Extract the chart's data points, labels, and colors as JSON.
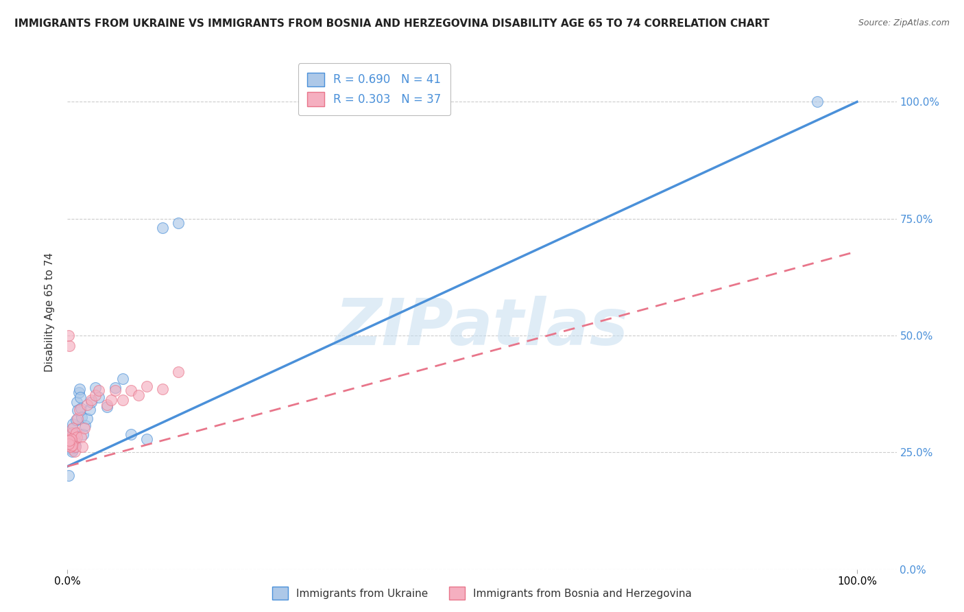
{
  "title": "IMMIGRANTS FROM UKRAINE VS IMMIGRANTS FROM BOSNIA AND HERZEGOVINA DISABILITY AGE 65 TO 74 CORRELATION CHART",
  "source": "Source: ZipAtlas.com",
  "ylabel": "Disability Age 65 to 74",
  "watermark": "ZIPatlas",
  "ukraine_R": 0.69,
  "ukraine_N": 41,
  "bosnia_R": 0.303,
  "bosnia_N": 37,
  "ukraine_color": "#adc8e8",
  "bosnia_color": "#f5afc0",
  "ukraine_line_color": "#4a90d9",
  "bosnia_line_color": "#e8758a",
  "background_color": "#ffffff",
  "grid_color": "#cccccc",
  "ukraine_scatter_x": [
    0.002,
    0.003,
    0.004,
    0.005,
    0.006,
    0.007,
    0.008,
    0.009,
    0.01,
    0.011,
    0.012,
    0.013,
    0.014,
    0.015,
    0.016,
    0.017,
    0.018,
    0.02,
    0.022,
    0.025,
    0.028,
    0.03,
    0.035,
    0.04,
    0.05,
    0.06,
    0.07,
    0.08,
    0.1,
    0.003,
    0.005,
    0.007,
    0.002,
    0.004,
    0.006,
    0.008,
    0.01,
    0.12,
    0.14,
    0.95,
    0.001
  ],
  "ukraine_scatter_y": [
    0.28,
    0.29,
    0.265,
    0.258,
    0.3,
    0.31,
    0.288,
    0.268,
    0.275,
    0.32,
    0.358,
    0.34,
    0.378,
    0.385,
    0.368,
    0.345,
    0.325,
    0.288,
    0.308,
    0.322,
    0.342,
    0.358,
    0.388,
    0.368,
    0.348,
    0.388,
    0.408,
    0.288,
    0.278,
    0.275,
    0.265,
    0.255,
    0.27,
    0.27,
    0.252,
    0.26,
    0.264,
    0.73,
    0.74,
    1.0,
    0.2
  ],
  "bosnia_scatter_x": [
    0.002,
    0.003,
    0.004,
    0.005,
    0.006,
    0.007,
    0.008,
    0.009,
    0.01,
    0.011,
    0.012,
    0.013,
    0.015,
    0.017,
    0.019,
    0.021,
    0.025,
    0.03,
    0.035,
    0.04,
    0.05,
    0.055,
    0.06,
    0.07,
    0.08,
    0.09,
    0.1,
    0.002,
    0.003,
    0.004,
    0.005,
    0.006,
    0.001,
    0.002,
    0.12,
    0.14,
    0.001
  ],
  "bosnia_scatter_y": [
    0.278,
    0.272,
    0.262,
    0.282,
    0.292,
    0.302,
    0.272,
    0.252,
    0.262,
    0.292,
    0.282,
    0.322,
    0.342,
    0.282,
    0.262,
    0.302,
    0.352,
    0.362,
    0.372,
    0.382,
    0.352,
    0.362,
    0.382,
    0.362,
    0.382,
    0.372,
    0.392,
    0.478,
    0.272,
    0.262,
    0.278,
    0.265,
    0.268,
    0.275,
    0.385,
    0.422,
    0.5
  ],
  "blue_line_x": [
    0.0,
    1.0
  ],
  "blue_line_y": [
    0.22,
    1.0
  ],
  "pink_line_x": [
    0.0,
    1.0
  ],
  "pink_line_y": [
    0.22,
    0.68
  ],
  "ylim": [
    0.0,
    1.1
  ],
  "xlim": [
    0.0,
    1.05
  ],
  "yticks": [
    0.0,
    0.25,
    0.5,
    0.75,
    1.0
  ],
  "ytick_labels": [
    "0.0%",
    "25.0%",
    "50.0%",
    "75.0%",
    "100.0%"
  ],
  "xtick_labels": [
    "0.0%",
    "100.0%"
  ],
  "legend_label_ukraine": "R = 0.690   N = 41",
  "legend_label_bosnia": "R = 0.303   N = 37",
  "bottom_legend_ukraine": "Immigrants from Ukraine",
  "bottom_legend_bosnia": "Immigrants from Bosnia and Herzegovina",
  "title_fontsize": 11,
  "source_fontsize": 9
}
